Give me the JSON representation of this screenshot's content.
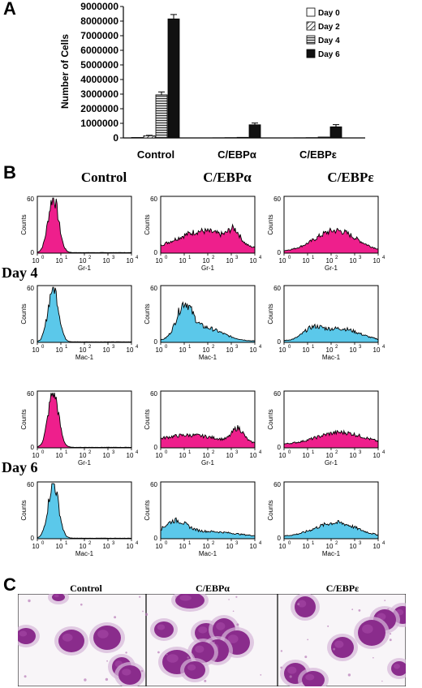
{
  "panels": {
    "a": "A",
    "b": "B",
    "c": "C"
  },
  "chart_data": {
    "type": "bar",
    "ylabel": "Number of Cells",
    "ylim": [
      0,
      9000000
    ],
    "yticks": [
      "0",
      "1000000",
      "2000000",
      "3000000",
      "4000000",
      "5000000",
      "6000000",
      "7000000",
      "8000000",
      "9000000"
    ],
    "categories": [
      "Control",
      "C/EBPα",
      "C/EBPε"
    ],
    "legend_position": "top-right",
    "series": [
      {
        "name": "Day 0",
        "values": [
          30000,
          10000,
          10000
        ],
        "errors": [
          0,
          0,
          0
        ],
        "pattern": "white"
      },
      {
        "name": "Day 2",
        "values": [
          150000,
          20000,
          20000
        ],
        "errors": [
          30000,
          0,
          0
        ],
        "pattern": "diagonal"
      },
      {
        "name": "Day 4",
        "values": [
          2950000,
          40000,
          60000
        ],
        "errors": [
          200000,
          0,
          0
        ],
        "pattern": "horizontal"
      },
      {
        "name": "Day 6",
        "values": [
          8150000,
          900000,
          760000
        ],
        "errors": [
          300000,
          120000,
          150000
        ],
        "pattern": "black"
      }
    ]
  },
  "flow": {
    "conditions": [
      "Control",
      "C/EBPα",
      "C/EBPε"
    ],
    "days": [
      "Day 4",
      "Day 6"
    ],
    "markers": [
      "Gr-1",
      "Mac-1"
    ],
    "ylabel": "Counts",
    "ytick_top": "60",
    "ytick_bottom": "0",
    "xticks": [
      "10",
      "10",
      "10",
      "10",
      "10"
    ],
    "xexps": [
      "0",
      "1",
      "2",
      "3",
      "4"
    ],
    "colors": {
      "Gr-1": "#ee1f8c",
      "Mac-1": "#5bc8ea"
    }
  },
  "micro": {
    "labels": [
      "Control",
      "C/EBPα",
      "C/EBPε"
    ]
  }
}
